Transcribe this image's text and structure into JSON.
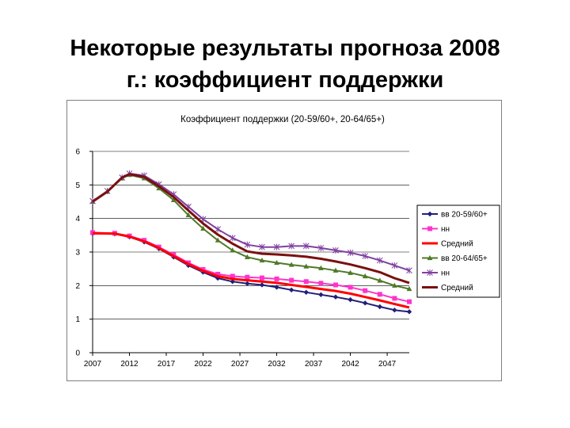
{
  "slide": {
    "title_line1": "Некоторые результаты прогноза 2008",
    "title_line2": "г.: коэффициент поддержки"
  },
  "chart_data": {
    "type": "line",
    "title": "Коэффициент поддержки (20-59/60+, 20-64/65+)",
    "x_tick_labels": [
      "2007",
      "2012",
      "2017",
      "2022",
      "2027",
      "2032",
      "2037",
      "2042",
      "2047"
    ],
    "xlim": [
      2007,
      2050
    ],
    "ylim": [
      0,
      6
    ],
    "y_ticks": [
      0,
      1,
      2,
      3,
      4,
      5,
      6
    ],
    "grid": "horizontal",
    "legend_position": "right",
    "series": [
      {
        "name": "вв 20-59/60+",
        "color": "#1f1f7a",
        "marker": "diamond",
        "x": [
          2007,
          2010,
          2012,
          2014,
          2016,
          2018,
          2020,
          2022,
          2024,
          2026,
          2028,
          2030,
          2032,
          2034,
          2036,
          2038,
          2040,
          2042,
          2044,
          2046,
          2048,
          2050
        ],
        "y": [
          3.55,
          3.54,
          3.45,
          3.3,
          3.1,
          2.85,
          2.6,
          2.4,
          2.22,
          2.12,
          2.06,
          2.02,
          1.95,
          1.87,
          1.8,
          1.73,
          1.66,
          1.58,
          1.48,
          1.37,
          1.27,
          1.22
        ]
      },
      {
        "name": "нн",
        "color": "#ff33cc",
        "marker": "square",
        "x": [
          2007,
          2010,
          2012,
          2014,
          2016,
          2018,
          2020,
          2022,
          2024,
          2026,
          2028,
          2030,
          2032,
          2034,
          2036,
          2038,
          2040,
          2042,
          2044,
          2046,
          2048,
          2050
        ],
        "y": [
          3.58,
          3.56,
          3.48,
          3.35,
          3.15,
          2.92,
          2.68,
          2.48,
          2.34,
          2.28,
          2.25,
          2.23,
          2.2,
          2.16,
          2.12,
          2.07,
          2.02,
          1.95,
          1.85,
          1.74,
          1.62,
          1.52
        ]
      },
      {
        "name": "Средний",
        "color": "#ff0000",
        "marker": "none",
        "x": [
          2007,
          2010,
          2012,
          2014,
          2016,
          2018,
          2020,
          2022,
          2024,
          2026,
          2028,
          2030,
          2032,
          2034,
          2036,
          2038,
          2040,
          2042,
          2044,
          2046,
          2048,
          2050
        ],
        "y": [
          3.56,
          3.55,
          3.46,
          3.32,
          3.12,
          2.88,
          2.64,
          2.44,
          2.28,
          2.2,
          2.16,
          2.12,
          2.08,
          2.02,
          1.96,
          1.9,
          1.84,
          1.76,
          1.66,
          1.56,
          1.45,
          1.35
        ]
      },
      {
        "name": "вв 20-64/65+",
        "color": "#4f7a28",
        "marker": "triangle",
        "x": [
          2007,
          2009,
          2011,
          2012,
          2014,
          2016,
          2018,
          2020,
          2022,
          2024,
          2026,
          2028,
          2030,
          2032,
          2034,
          2036,
          2038,
          2040,
          2042,
          2044,
          2046,
          2048,
          2050
        ],
        "y": [
          4.5,
          4.8,
          5.2,
          5.3,
          5.2,
          4.9,
          4.55,
          4.1,
          3.7,
          3.35,
          3.05,
          2.85,
          2.75,
          2.68,
          2.62,
          2.57,
          2.52,
          2.45,
          2.38,
          2.28,
          2.15,
          2.0,
          1.9
        ]
      },
      {
        "name": "нн",
        "color": "#8040a0",
        "marker": "star",
        "x": [
          2007,
          2009,
          2011,
          2012,
          2014,
          2016,
          2018,
          2020,
          2022,
          2024,
          2026,
          2028,
          2030,
          2032,
          2034,
          2036,
          2038,
          2040,
          2042,
          2044,
          2046,
          2048,
          2050
        ],
        "y": [
          4.52,
          4.82,
          5.22,
          5.34,
          5.28,
          5.02,
          4.72,
          4.35,
          3.98,
          3.68,
          3.42,
          3.22,
          3.15,
          3.15,
          3.18,
          3.18,
          3.12,
          3.05,
          2.98,
          2.88,
          2.75,
          2.6,
          2.45
        ]
      },
      {
        "name": "Средний",
        "color": "#7a1010",
        "marker": "none",
        "x": [
          2007,
          2009,
          2011,
          2012,
          2014,
          2016,
          2018,
          2020,
          2022,
          2024,
          2026,
          2028,
          2030,
          2032,
          2034,
          2036,
          2038,
          2040,
          2042,
          2044,
          2046,
          2048,
          2050
        ],
        "y": [
          4.5,
          4.8,
          5.22,
          5.32,
          5.24,
          4.96,
          4.64,
          4.24,
          3.85,
          3.52,
          3.25,
          3.02,
          2.95,
          2.93,
          2.9,
          2.86,
          2.8,
          2.72,
          2.63,
          2.52,
          2.4,
          2.22,
          2.08
        ]
      }
    ]
  }
}
